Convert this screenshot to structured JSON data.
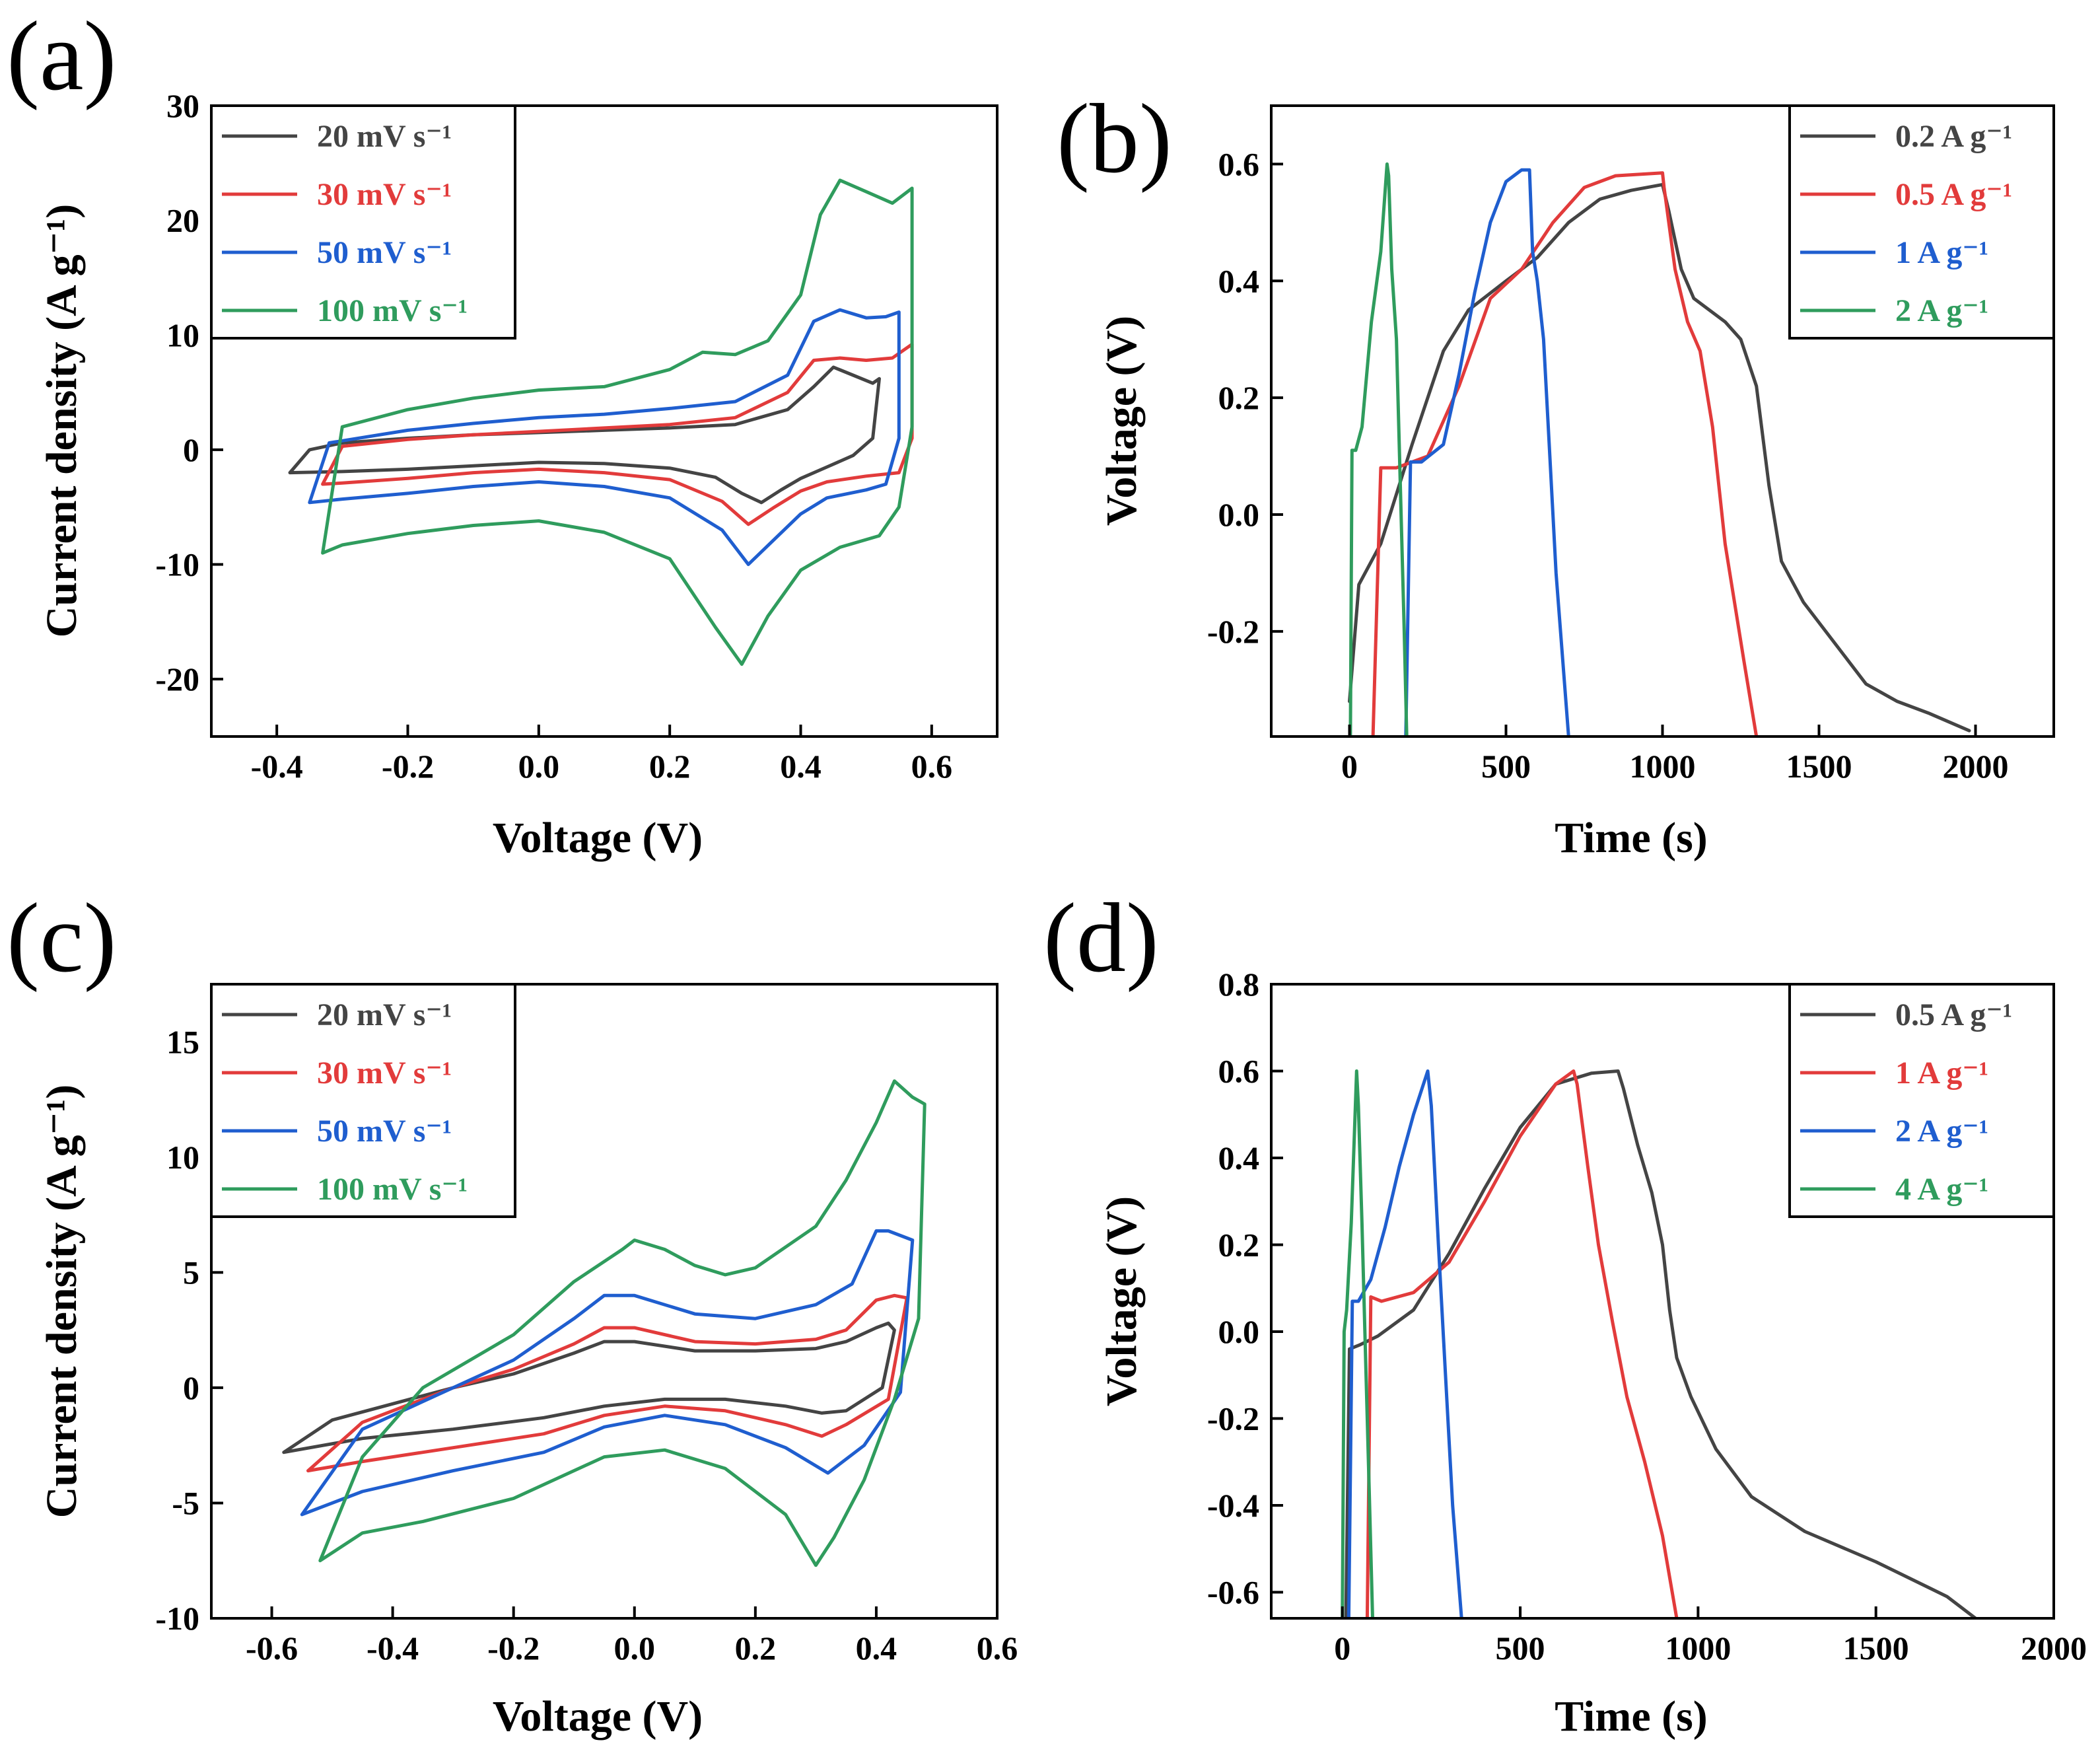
{
  "colors": {
    "black": "#444444",
    "red": "#e23b3b",
    "blue": "#1f5ecf",
    "green": "#2f9c5d"
  },
  "chart_data": [
    {
      "panel_label": "(a)",
      "type": "line",
      "xlabel": "Voltage (V)",
      "ylabel": "Current density (A g⁻¹)",
      "xlim": [
        -0.5,
        0.7
      ],
      "ylim": [
        -25,
        30
      ],
      "xticks": [
        -0.4,
        -0.2,
        0.0,
        0.2,
        0.4,
        0.6
      ],
      "yticks": [
        -20,
        -10,
        0,
        10,
        20,
        30
      ],
      "xtick_labels": [
        "-0.4",
        "-0.2",
        "0.0",
        "0.2",
        "0.4",
        "0.6"
      ],
      "ytick_labels": [
        "-20",
        "-10",
        "0",
        "10",
        "20",
        "30"
      ],
      "legend_location": "top-left",
      "series": [
        {
          "name": "20 mV s⁻¹",
          "color": "#444444",
          "x": [
            -0.38,
            -0.35,
            -0.3,
            -0.2,
            -0.1,
            0.0,
            0.1,
            0.2,
            0.3,
            0.38,
            0.42,
            0.45,
            0.48,
            0.51,
            0.52,
            0.51,
            0.48,
            0.44,
            0.4,
            0.37,
            0.34,
            0.31,
            0.27,
            0.2,
            0.1,
            0.0,
            -0.1,
            -0.2,
            -0.3,
            -0.38
          ],
          "y": [
            -2,
            0,
            0.6,
            1.0,
            1.3,
            1.5,
            1.7,
            1.9,
            2.2,
            3.5,
            5.5,
            7.2,
            6.5,
            5.8,
            6.2,
            1.0,
            -0.5,
            -1.5,
            -2.5,
            -3.5,
            -4.6,
            -3.8,
            -2.4,
            -1.6,
            -1.2,
            -1.1,
            -1.4,
            -1.7,
            -1.9,
            -2
          ]
        },
        {
          "name": "30 mV s⁻¹",
          "color": "#e23b3b",
          "x": [
            -0.33,
            -0.3,
            -0.2,
            -0.1,
            0.0,
            0.1,
            0.2,
            0.3,
            0.38,
            0.42,
            0.46,
            0.5,
            0.54,
            0.57,
            0.57,
            0.55,
            0.5,
            0.44,
            0.4,
            0.36,
            0.32,
            0.28,
            0.2,
            0.1,
            0.0,
            -0.1,
            -0.2,
            -0.3,
            -0.33
          ],
          "y": [
            -3,
            0.3,
            0.9,
            1.3,
            1.6,
            1.9,
            2.2,
            2.8,
            5,
            7.8,
            8.0,
            7.8,
            8.0,
            9.2,
            1.0,
            -2.0,
            -2.3,
            -2.8,
            -3.6,
            -5.0,
            -6.5,
            -4.5,
            -2.6,
            -2.0,
            -1.7,
            -2.0,
            -2.5,
            -2.9,
            -3
          ]
        },
        {
          "name": "50 mV s⁻¹",
          "color": "#1f5ecf",
          "x": [
            -0.35,
            -0.32,
            -0.2,
            -0.1,
            0.0,
            0.1,
            0.2,
            0.3,
            0.38,
            0.42,
            0.46,
            0.5,
            0.53,
            0.55,
            0.55,
            0.53,
            0.5,
            0.44,
            0.4,
            0.36,
            0.32,
            0.28,
            0.2,
            0.1,
            0.0,
            -0.1,
            -0.2,
            -0.3,
            -0.35
          ],
          "y": [
            -4.6,
            0.6,
            1.7,
            2.3,
            2.8,
            3.1,
            3.6,
            4.2,
            6.5,
            11.2,
            12.2,
            11.5,
            11.6,
            12.0,
            1.0,
            -3.0,
            -3.5,
            -4.2,
            -5.6,
            -7.8,
            -10,
            -7.0,
            -4.2,
            -3.2,
            -2.8,
            -3.2,
            -3.8,
            -4.3,
            -4.6
          ]
        },
        {
          "name": "100 mV s⁻¹",
          "color": "#2f9c5d",
          "x": [
            -0.33,
            -0.3,
            -0.2,
            -0.1,
            0.0,
            0.1,
            0.2,
            0.25,
            0.3,
            0.35,
            0.4,
            0.43,
            0.46,
            0.5,
            0.54,
            0.57,
            0.57,
            0.55,
            0.52,
            0.46,
            0.4,
            0.35,
            0.31,
            0.27,
            0.2,
            0.1,
            0.0,
            -0.1,
            -0.2,
            -0.3,
            -0.33
          ],
          "y": [
            -9,
            2,
            3.5,
            4.5,
            5.2,
            5.5,
            7,
            8.5,
            8.3,
            9.5,
            13.5,
            20.5,
            23.5,
            22.5,
            21.5,
            22.8,
            2.0,
            -5.0,
            -7.5,
            -8.5,
            -10.5,
            -14.5,
            -18.7,
            -15.5,
            -9.5,
            -7.2,
            -6.2,
            -6.6,
            -7.3,
            -8.3,
            -9
          ]
        }
      ]
    },
    {
      "panel_label": "(b)",
      "type": "line",
      "xlabel": "Time (s)",
      "ylabel": "Voltage (V)",
      "xlim": [
        -250,
        2250
      ],
      "ylim": [
        -0.38,
        0.7
      ],
      "xticks": [
        0,
        500,
        1000,
        1500,
        2000
      ],
      "yticks": [
        -0.2,
        0.0,
        0.2,
        0.4,
        0.6
      ],
      "xtick_labels": [
        "0",
        "500",
        "1000",
        "1500",
        "2000"
      ],
      "ytick_labels": [
        "-0.2",
        "0.0",
        "0.2",
        "0.4",
        "0.6"
      ],
      "legend_location": "top-right",
      "series": [
        {
          "name": "0.2 A g⁻¹",
          "color": "#444444",
          "x": [
            0,
            30,
            100,
            200,
            300,
            380,
            500,
            600,
            700,
            800,
            900,
            1000,
            1020,
            1060,
            1100,
            1150,
            1200,
            1250,
            1300,
            1340,
            1380,
            1450,
            1550,
            1650,
            1750,
            1850,
            1980
          ],
          "y": [
            -0.32,
            -0.12,
            -0.05,
            0.12,
            0.28,
            0.35,
            0.4,
            0.44,
            0.5,
            0.54,
            0.555,
            0.565,
            0.52,
            0.42,
            0.37,
            0.35,
            0.33,
            0.3,
            0.22,
            0.05,
            -0.08,
            -0.15,
            -0.22,
            -0.29,
            -0.32,
            -0.34,
            -0.37
          ]
        },
        {
          "name": "0.5 A g⁻¹",
          "color": "#e23b3b",
          "x": [
            75,
            100,
            150,
            250,
            350,
            450,
            550,
            650,
            750,
            850,
            1000,
            1005,
            1040,
            1080,
            1120,
            1160,
            1200,
            1260,
            1300
          ],
          "y": [
            -0.38,
            0.08,
            0.08,
            0.1,
            0.22,
            0.37,
            0.42,
            0.5,
            0.56,
            0.58,
            0.585,
            0.56,
            0.42,
            0.33,
            0.28,
            0.15,
            -0.05,
            -0.25,
            -0.38
          ]
        },
        {
          "name": "1 A g⁻¹",
          "color": "#1f5ecf",
          "x": [
            180,
            195,
            230,
            300,
            350,
            400,
            450,
            500,
            550,
            575,
            585,
            600,
            620,
            640,
            660,
            700
          ],
          "y": [
            -0.38,
            0.09,
            0.09,
            0.12,
            0.24,
            0.38,
            0.5,
            0.57,
            0.59,
            0.59,
            0.45,
            0.4,
            0.3,
            0.1,
            -0.1,
            -0.38
          ]
        },
        {
          "name": "2 A g⁻¹",
          "color": "#2f9c5d",
          "x": [
            3,
            8,
            20,
            40,
            70,
            100,
            120,
            125,
            135,
            150,
            160,
            175,
            183
          ],
          "y": [
            -0.38,
            0.11,
            0.11,
            0.15,
            0.33,
            0.45,
            0.6,
            0.58,
            0.42,
            0.3,
            0.1,
            -0.2,
            -0.38
          ]
        }
      ]
    },
    {
      "panel_label": "(c)",
      "type": "line",
      "xlabel": "Voltage (V)",
      "ylabel": "Current density (A g⁻¹)",
      "xlim": [
        -0.7,
        0.6
      ],
      "ylim": [
        -10,
        17.5
      ],
      "xticks": [
        -0.6,
        -0.4,
        -0.2,
        0.0,
        0.2,
        0.4,
        0.6
      ],
      "yticks": [
        -10,
        -5,
        0,
        5,
        10,
        15
      ],
      "xtick_labels": [
        "-0.6",
        "-0.4",
        "-0.2",
        "0.0",
        "0.2",
        "0.4",
        "0.6"
      ],
      "ytick_labels": [
        "-10",
        "-5",
        "0",
        "5",
        "10",
        "15"
      ],
      "legend_location": "top-left",
      "series": [
        {
          "name": "20 mV s⁻¹",
          "color": "#444444",
          "x": [
            -0.58,
            -0.5,
            -0.4,
            -0.3,
            -0.2,
            -0.1,
            -0.05,
            0.0,
            0.1,
            0.2,
            0.3,
            0.35,
            0.4,
            0.42,
            0.43,
            0.41,
            0.35,
            0.31,
            0.25,
            0.15,
            0.05,
            -0.05,
            -0.15,
            -0.3,
            -0.45,
            -0.58
          ],
          "y": [
            -2.8,
            -1.4,
            -0.7,
            0.0,
            0.6,
            1.5,
            2.0,
            2.0,
            1.6,
            1.6,
            1.7,
            2.0,
            2.6,
            2.8,
            2.5,
            0.0,
            -1.0,
            -1.1,
            -0.8,
            -0.5,
            -0.5,
            -0.8,
            -1.3,
            -1.8,
            -2.2,
            -2.8
          ]
        },
        {
          "name": "30 mV s⁻¹",
          "color": "#e23b3b",
          "x": [
            -0.54,
            -0.45,
            -0.3,
            -0.2,
            -0.1,
            -0.05,
            0.0,
            0.1,
            0.2,
            0.3,
            0.35,
            0.4,
            0.43,
            0.45,
            0.45,
            0.42,
            0.35,
            0.31,
            0.25,
            0.15,
            0.05,
            -0.05,
            -0.15,
            -0.3,
            -0.45,
            -0.54
          ],
          "y": [
            -3.6,
            -1.5,
            0.0,
            0.8,
            1.9,
            2.6,
            2.6,
            2.0,
            1.9,
            2.1,
            2.5,
            3.8,
            4.0,
            3.9,
            3.8,
            -0.5,
            -1.6,
            -2.1,
            -1.6,
            -1.0,
            -0.8,
            -1.2,
            -2.0,
            -2.6,
            -3.2,
            -3.6
          ]
        },
        {
          "name": "50 mV s⁻¹",
          "color": "#1f5ecf",
          "x": [
            -0.55,
            -0.45,
            -0.3,
            -0.2,
            -0.1,
            -0.05,
            0.0,
            0.1,
            0.2,
            0.3,
            0.36,
            0.4,
            0.42,
            0.45,
            0.46,
            0.44,
            0.38,
            0.32,
            0.25,
            0.15,
            0.05,
            -0.05,
            -0.15,
            -0.3,
            -0.45,
            -0.55
          ],
          "y": [
            -5.5,
            -1.8,
            0.0,
            1.2,
            3.0,
            4.0,
            4.0,
            3.2,
            3.0,
            3.6,
            4.5,
            6.8,
            6.8,
            6.5,
            6.4,
            -0.2,
            -2.5,
            -3.7,
            -2.6,
            -1.6,
            -1.2,
            -1.7,
            -2.8,
            -3.6,
            -4.5,
            -5.5
          ]
        },
        {
          "name": "100 mV s⁻¹",
          "color": "#2f9c5d",
          "x": [
            -0.52,
            -0.45,
            -0.35,
            -0.2,
            -0.1,
            -0.02,
            0.0,
            0.05,
            0.1,
            0.15,
            0.2,
            0.3,
            0.35,
            0.4,
            0.43,
            0.46,
            0.48,
            0.47,
            0.43,
            0.38,
            0.33,
            0.3,
            0.25,
            0.15,
            0.05,
            -0.05,
            -0.2,
            -0.35,
            -0.45,
            -0.52
          ],
          "y": [
            -7.5,
            -3.0,
            0.0,
            2.3,
            4.6,
            6.0,
            6.4,
            6.0,
            5.3,
            4.9,
            5.2,
            7.0,
            9.0,
            11.5,
            13.3,
            12.6,
            12.3,
            3.0,
            -0.5,
            -4.0,
            -6.5,
            -7.7,
            -5.5,
            -3.5,
            -2.7,
            -3.0,
            -4.8,
            -5.8,
            -6.3,
            -7.5
          ]
        }
      ]
    },
    {
      "panel_label": "(d)",
      "type": "line",
      "xlabel": "Time (s)",
      "ylabel": "Voltage (V)",
      "xlim": [
        -200,
        2000
      ],
      "ylim": [
        -0.66,
        0.8
      ],
      "xticks": [
        0,
        500,
        1000,
        1500,
        2000
      ],
      "yticks": [
        -0.6,
        -0.4,
        -0.2,
        0.0,
        0.2,
        0.4,
        0.6,
        0.8
      ],
      "xtick_labels": [
        "0",
        "500",
        "1000",
        "1500",
        "2000"
      ],
      "ytick_labels": [
        "-0.6",
        "-0.4",
        "-0.2",
        "0.0",
        "0.2",
        "0.4",
        "0.6",
        "0.8"
      ],
      "legend_location": "top-right",
      "series": [
        {
          "name": "0.5 A g⁻¹",
          "color": "#444444",
          "x": [
            10,
            20,
            50,
            100,
            200,
            300,
            400,
            500,
            600,
            700,
            775,
            790,
            830,
            870,
            900,
            920,
            940,
            980,
            1050,
            1150,
            1300,
            1500,
            1700,
            1780
          ],
          "y": [
            -0.66,
            -0.04,
            -0.03,
            -0.01,
            0.05,
            0.18,
            0.33,
            0.47,
            0.57,
            0.595,
            0.6,
            0.56,
            0.43,
            0.32,
            0.2,
            0.05,
            -0.06,
            -0.15,
            -0.27,
            -0.38,
            -0.46,
            -0.53,
            -0.61,
            -0.66
          ]
        },
        {
          "name": "1 A g⁻¹",
          "color": "#e23b3b",
          "x": [
            70,
            80,
            110,
            200,
            300,
            400,
            500,
            600,
            650,
            660,
            690,
            720,
            760,
            800,
            850,
            900,
            940
          ],
          "y": [
            -0.66,
            0.08,
            0.07,
            0.09,
            0.16,
            0.3,
            0.45,
            0.57,
            0.6,
            0.57,
            0.38,
            0.2,
            0.02,
            -0.15,
            -0.3,
            -0.47,
            -0.66
          ]
        },
        {
          "name": "2 A g⁻¹",
          "color": "#1f5ecf",
          "x": [
            18,
            28,
            45,
            80,
            120,
            160,
            200,
            240,
            250,
            270,
            290,
            310,
            335
          ],
          "y": [
            -0.66,
            0.07,
            0.07,
            0.12,
            0.24,
            0.38,
            0.5,
            0.6,
            0.52,
            0.2,
            -0.1,
            -0.4,
            -0.66
          ]
        },
        {
          "name": "4 A g⁻¹",
          "color": "#2f9c5d",
          "x": [
            0,
            5,
            12,
            25,
            40,
            45,
            55,
            65,
            75,
            85
          ],
          "y": [
            -0.66,
            0.0,
            0.05,
            0.25,
            0.6,
            0.52,
            0.25,
            -0.05,
            -0.35,
            -0.66
          ]
        }
      ]
    }
  ]
}
